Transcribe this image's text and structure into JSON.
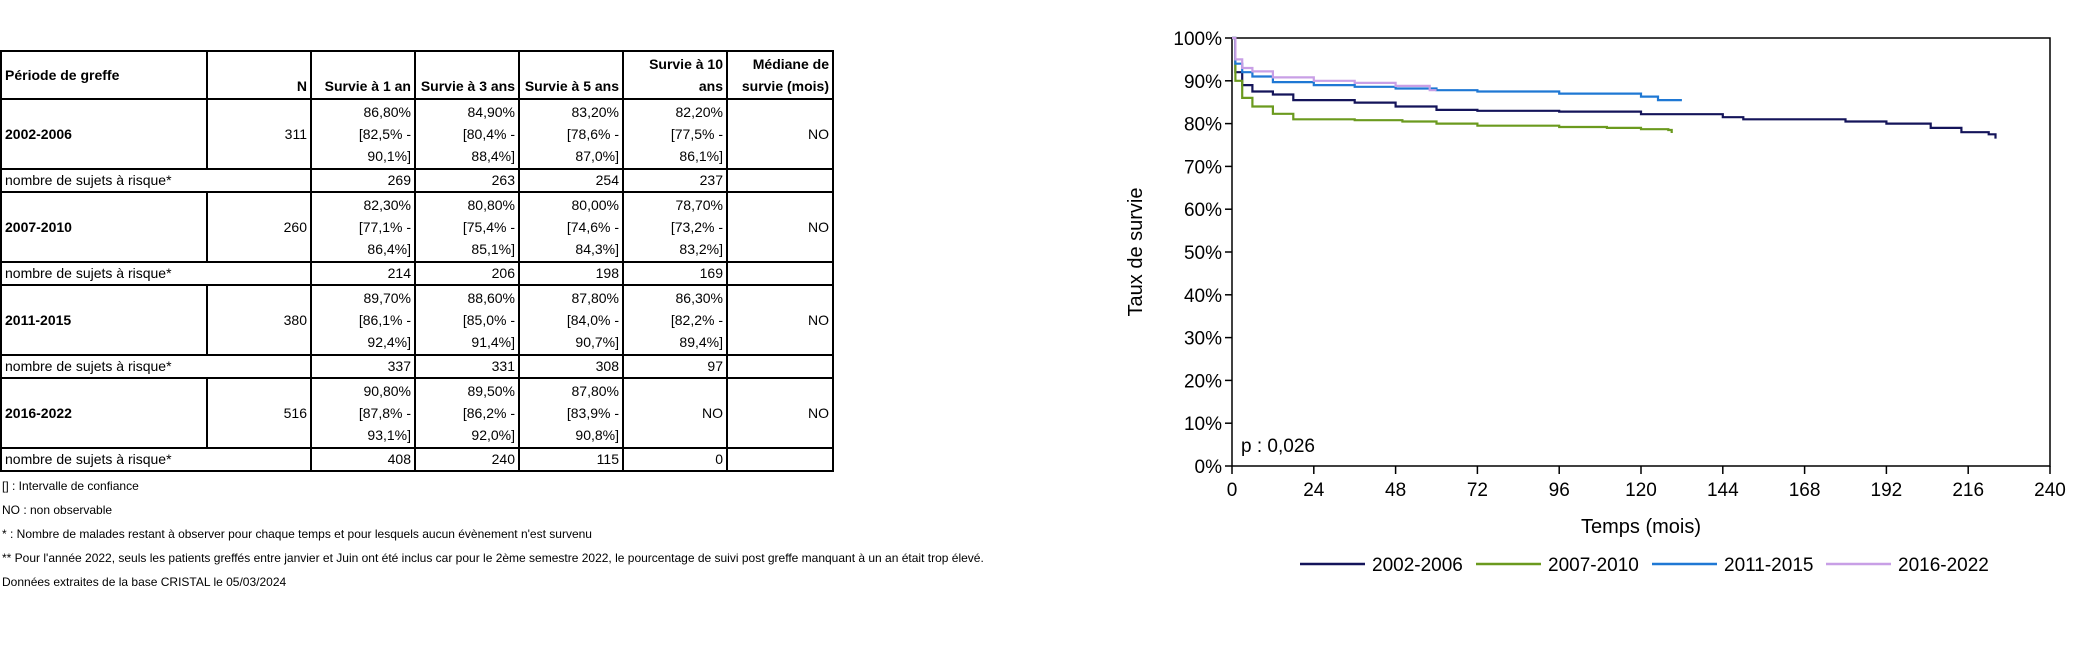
{
  "table": {
    "headers": [
      "Période de greffe",
      "N",
      "Survie à 1 an",
      "Survie à 3 ans",
      "Survie à 5 ans",
      "Survie à 10 ans",
      "Médiane de survie (mois)"
    ],
    "risk_label": "nombre de sujets à risque*",
    "groups": [
      {
        "period": "2002-2006",
        "n": "311",
        "cells": [
          [
            "86,80%",
            "[82,5% -",
            "90,1%]"
          ],
          [
            "84,90%",
            "[80,4% -",
            "88,4%]"
          ],
          [
            "83,20%",
            "[78,6% -",
            "87,0%]"
          ],
          [
            "82,20%",
            "[77,5% -",
            "86,1%]"
          ],
          [
            "NO"
          ]
        ],
        "risk": [
          "269",
          "263",
          "254",
          "237"
        ]
      },
      {
        "period": "2007-2010",
        "n": "260",
        "cells": [
          [
            "82,30%",
            "[77,1% -",
            "86,4%]"
          ],
          [
            "80,80%",
            "[75,4% -",
            "85,1%]"
          ],
          [
            "80,00%",
            "[74,6% -",
            "84,3%]"
          ],
          [
            "78,70%",
            "[73,2% -",
            "83,2%]"
          ],
          [
            "NO"
          ]
        ],
        "risk": [
          "214",
          "206",
          "198",
          "169"
        ]
      },
      {
        "period": "2011-2015",
        "n": "380",
        "cells": [
          [
            "89,70%",
            "[86,1% -",
            "92,4%]"
          ],
          [
            "88,60%",
            "[85,0% -",
            "91,4%]"
          ],
          [
            "87,80%",
            "[84,0% -",
            "90,7%]"
          ],
          [
            "86,30%",
            "[82,2% -",
            "89,4%]"
          ],
          [
            "NO"
          ]
        ],
        "risk": [
          "337",
          "331",
          "308",
          "97"
        ]
      },
      {
        "period": "2016-2022",
        "n": "516",
        "cells": [
          [
            "90,80%",
            "[87,8% -",
            "93,1%]"
          ],
          [
            "89,50%",
            "[86,2% -",
            "92,0%]"
          ],
          [
            "87,80%",
            "[83,9% -",
            "90,8%]"
          ],
          [
            "NO"
          ],
          [
            "NO"
          ]
        ],
        "risk": [
          "408",
          "240",
          "115",
          "0"
        ]
      }
    ]
  },
  "notes": [
    "[] : Intervalle de confiance",
    "NO : non observable",
    "* : Nombre de malades restant à observer pour chaque temps et pour lesquels aucun évènement n'est survenu",
    "** Pour l'année 2022, seuls les patients greffés entre janvier et Juin ont été inclus car pour le 2ème semestre 2022, le pourcentage de suivi post greffe manquant à un an était trop élevé.",
    "Données extraites de la base CRISTAL le 05/03/2024"
  ],
  "chart_data": {
    "type": "line",
    "title": "",
    "xlabel": "Temps (mois)",
    "ylabel": "Taux de survie",
    "xlim": [
      0,
      240
    ],
    "ylim": [
      0,
      100
    ],
    "xticks": [
      0,
      24,
      48,
      72,
      96,
      120,
      144,
      168,
      192,
      216,
      240
    ],
    "yticks": [
      0,
      10,
      20,
      30,
      40,
      50,
      60,
      70,
      80,
      90,
      100
    ],
    "ytick_labels": [
      "0%",
      "10%",
      "20%",
      "30%",
      "40%",
      "50%",
      "60%",
      "70%",
      "80%",
      "90%",
      "100%"
    ],
    "annotation": "p : 0,026",
    "grid": false,
    "legend_position": "bottom",
    "series": [
      {
        "name": "2002-2006",
        "color": "#14145a",
        "points": [
          [
            0,
            100
          ],
          [
            1,
            92
          ],
          [
            3,
            89
          ],
          [
            6,
            87.5
          ],
          [
            12,
            86.8
          ],
          [
            18,
            85.5
          ],
          [
            36,
            84.9
          ],
          [
            48,
            84
          ],
          [
            60,
            83.2
          ],
          [
            72,
            83
          ],
          [
            96,
            82.8
          ],
          [
            120,
            82.2
          ],
          [
            144,
            81.5
          ],
          [
            150,
            81
          ],
          [
            180,
            80.5
          ],
          [
            192,
            80
          ],
          [
            205,
            79
          ],
          [
            214,
            78
          ],
          [
            222,
            77.5
          ],
          [
            224,
            76.5
          ]
        ]
      },
      {
        "name": "2007-2010",
        "color": "#6b9a1e",
        "points": [
          [
            0,
            100
          ],
          [
            1,
            90
          ],
          [
            3,
            86
          ],
          [
            6,
            84
          ],
          [
            12,
            82.3
          ],
          [
            18,
            81
          ],
          [
            36,
            80.8
          ],
          [
            50,
            80.5
          ],
          [
            60,
            80
          ],
          [
            72,
            79.5
          ],
          [
            96,
            79.2
          ],
          [
            110,
            79
          ],
          [
            120,
            78.7
          ],
          [
            128,
            78.5
          ],
          [
            129,
            77.8
          ]
        ]
      },
      {
        "name": "2011-2015",
        "color": "#1f78d4",
        "points": [
          [
            0,
            100
          ],
          [
            1,
            94
          ],
          [
            3,
            92
          ],
          [
            6,
            91
          ],
          [
            12,
            89.7
          ],
          [
            24,
            89
          ],
          [
            36,
            88.6
          ],
          [
            48,
            88.2
          ],
          [
            60,
            87.8
          ],
          [
            72,
            87.5
          ],
          [
            96,
            87
          ],
          [
            120,
            86.3
          ],
          [
            125,
            85.5
          ],
          [
            132,
            85.5
          ]
        ]
      },
      {
        "name": "2016-2022",
        "color": "#c89fe6",
        "points": [
          [
            0,
            100
          ],
          [
            1,
            95
          ],
          [
            3,
            93
          ],
          [
            6,
            92.2
          ],
          [
            12,
            90.8
          ],
          [
            24,
            90
          ],
          [
            36,
            89.5
          ],
          [
            48,
            88.8
          ],
          [
            58,
            87.8
          ],
          [
            60,
            87.8
          ]
        ]
      }
    ]
  }
}
